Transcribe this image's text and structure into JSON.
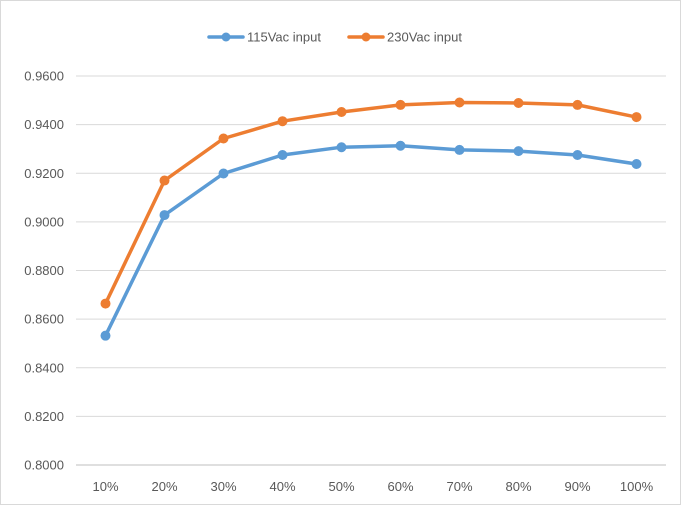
{
  "chart_data": {
    "type": "line",
    "title": "",
    "xlabel": "",
    "ylabel": "",
    "categories": [
      "10%",
      "20%",
      "30%",
      "40%",
      "50%",
      "60%",
      "70%",
      "80%",
      "90%",
      "100%"
    ],
    "ylim": [
      0.8,
      0.96
    ],
    "yticks": [
      "0.8000",
      "0.8200",
      "0.8400",
      "0.8600",
      "0.8800",
      "0.9000",
      "0.9200",
      "0.9400",
      "0.9600"
    ],
    "ytick_values": [
      0.8,
      0.82,
      0.84,
      0.86,
      0.88,
      0.9,
      0.92,
      0.94,
      0.96
    ],
    "grid": true,
    "legend_position": "top-center",
    "series": [
      {
        "name": "115Vac input",
        "color": "#5B9BD5",
        "values": [
          0.8532,
          0.9028,
          0.9199,
          0.9275,
          0.9307,
          0.9313,
          0.9296,
          0.9291,
          0.9275,
          0.9238
        ]
      },
      {
        "name": "230Vac input",
        "color": "#ED7D31",
        "values": [
          0.8664,
          0.917,
          0.9343,
          0.9414,
          0.9452,
          0.9481,
          0.9491,
          0.9489,
          0.9481,
          0.9431
        ]
      }
    ]
  }
}
